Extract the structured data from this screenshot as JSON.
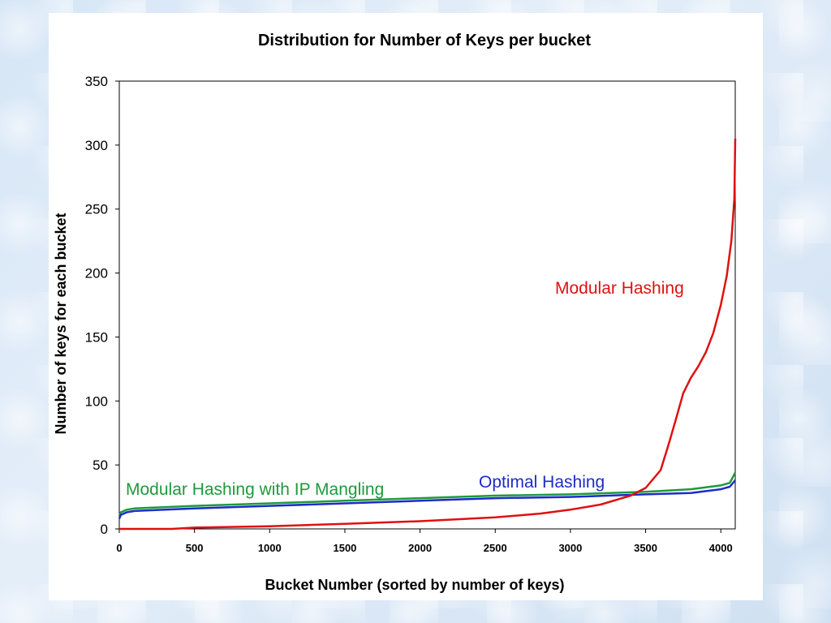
{
  "chart_data": {
    "type": "line",
    "title": "Distribution for Number of Keys per bucket",
    "xlabel": "Bucket Number (sorted by number of keys)",
    "ylabel": "Number of keys for each bucket",
    "xlim": [
      0,
      4096
    ],
    "ylim": [
      0,
      350
    ],
    "xticks": [
      0,
      500,
      1000,
      1500,
      2000,
      2500,
      3000,
      3500,
      4000
    ],
    "yticks": [
      0,
      50,
      100,
      150,
      200,
      250,
      300,
      350
    ],
    "grid": false,
    "series": [
      {
        "name": "Modular Hashing",
        "color": "#e01010",
        "x": [
          0,
          350,
          500,
          1000,
          1500,
          2000,
          2500,
          2800,
          3000,
          3200,
          3400,
          3500,
          3600,
          3650,
          3700,
          3750,
          3800,
          3850,
          3900,
          3950,
          4000,
          4040,
          4070,
          4090,
          4096
        ],
        "y": [
          0,
          0,
          1,
          2,
          4,
          6,
          9,
          12,
          15,
          19,
          26,
          32,
          46,
          65,
          85,
          106,
          118,
          127,
          138,
          153,
          175,
          198,
          225,
          258,
          305
        ]
      },
      {
        "name": "Optimal Hashing",
        "color": "#1c2cc8",
        "x": [
          0,
          10,
          50,
          100,
          500,
          1000,
          1500,
          2000,
          2500,
          3000,
          3500,
          3800,
          4000,
          4060,
          4096
        ],
        "y": [
          8,
          11,
          13,
          14,
          16,
          18,
          20,
          22,
          24,
          25,
          27,
          28,
          31,
          33,
          38
        ]
      },
      {
        "name": "Modular Hashing with IP Mangling",
        "color": "#1e9a3c",
        "x": [
          0,
          10,
          50,
          100,
          500,
          1000,
          1500,
          2000,
          2500,
          3000,
          3500,
          3800,
          4000,
          4060,
          4096
        ],
        "y": [
          10,
          13,
          15,
          16,
          18,
          20,
          22,
          24,
          26,
          27,
          29,
          31,
          34,
          36,
          44
        ]
      }
    ],
    "annotations": [
      {
        "text": "Modular Hashing",
        "series": 0
      },
      {
        "text": "Optimal Hashing",
        "series": 1
      },
      {
        "text": "Modular Hashing with IP Mangling",
        "series": 2
      }
    ]
  }
}
